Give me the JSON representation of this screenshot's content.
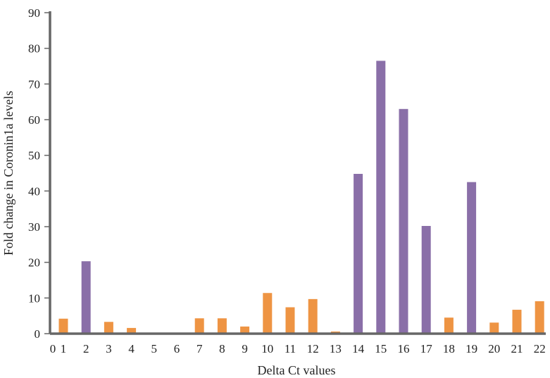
{
  "chart_data": {
    "type": "bar",
    "title": "",
    "xlabel": "Delta Ct values",
    "ylabel": "Fold change in Coronin1a levels",
    "ylim": [
      0,
      90
    ],
    "yticks": [
      0,
      10,
      20,
      30,
      40,
      50,
      60,
      70,
      80,
      90
    ],
    "x_axis_origin_label": "0",
    "grid": false,
    "legend": "none",
    "colors": {
      "high": "#8a6fa8",
      "low": "#ee9443",
      "axis": "#666666"
    },
    "bars": [
      {
        "category": "1",
        "value": 4.2,
        "color_key": "low"
      },
      {
        "category": "2",
        "value": 20.3,
        "color_key": "high"
      },
      {
        "category": "3",
        "value": 3.3,
        "color_key": "low"
      },
      {
        "category": "4",
        "value": 1.6,
        "color_key": "low"
      },
      {
        "category": "5",
        "value": 0,
        "color_key": "low"
      },
      {
        "category": "6",
        "value": 0,
        "color_key": "low"
      },
      {
        "category": "7",
        "value": 4.3,
        "color_key": "low"
      },
      {
        "category": "8",
        "value": 4.3,
        "color_key": "low"
      },
      {
        "category": "9",
        "value": 2.0,
        "color_key": "low"
      },
      {
        "category": "10",
        "value": 11.4,
        "color_key": "low"
      },
      {
        "category": "11",
        "value": 7.4,
        "color_key": "low"
      },
      {
        "category": "12",
        "value": 9.7,
        "color_key": "low"
      },
      {
        "category": "13",
        "value": 0.6,
        "color_key": "low"
      },
      {
        "category": "14",
        "value": 44.8,
        "color_key": "high"
      },
      {
        "category": "15",
        "value": 76.5,
        "color_key": "high"
      },
      {
        "category": "16",
        "value": 63.0,
        "color_key": "high"
      },
      {
        "category": "17",
        "value": 30.2,
        "color_key": "high"
      },
      {
        "category": "18",
        "value": 4.5,
        "color_key": "low"
      },
      {
        "category": "19",
        "value": 42.5,
        "color_key": "high"
      },
      {
        "category": "20",
        "value": 3.1,
        "color_key": "low"
      },
      {
        "category": "21",
        "value": 6.7,
        "color_key": "low"
      },
      {
        "category": "22",
        "value": 9.1,
        "color_key": "low"
      }
    ]
  }
}
